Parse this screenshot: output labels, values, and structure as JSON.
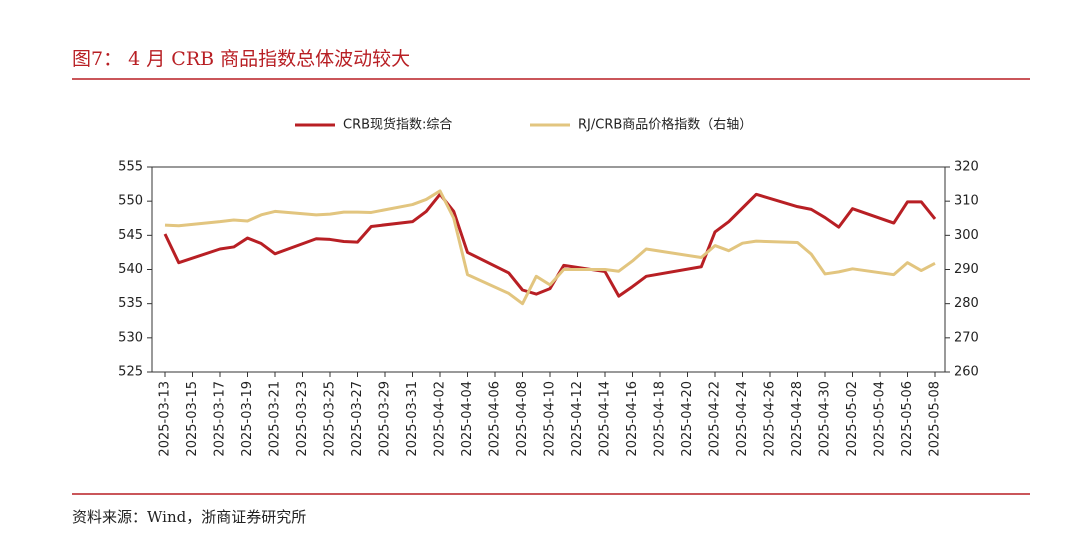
{
  "chart_data": {
    "type": "line",
    "title": "图7： 4 月 CRB 商品指数总体波动较大",
    "source": "资料来源：Wind，浙商证券研究所",
    "x": [
      "2025-03-13",
      "2025-03-14",
      "2025-03-17",
      "2025-03-18",
      "2025-03-19",
      "2025-03-20",
      "2025-03-21",
      "2025-03-24",
      "2025-03-25",
      "2025-03-26",
      "2025-03-27",
      "2025-03-28",
      "2025-03-31",
      "2025-04-01",
      "2025-04-02",
      "2025-04-03",
      "2025-04-04",
      "2025-04-07",
      "2025-04-08",
      "2025-04-09",
      "2025-04-10",
      "2025-04-11",
      "2025-04-14",
      "2025-04-15",
      "2025-04-16",
      "2025-04-17",
      "2025-04-21",
      "2025-04-22",
      "2025-04-23",
      "2025-04-24",
      "2025-04-25",
      "2025-04-28",
      "2025-04-29",
      "2025-04-30",
      "2025-05-01",
      "2025-05-02",
      "2025-05-05",
      "2025-05-06",
      "2025-05-07",
      "2025-05-08"
    ],
    "series": [
      {
        "name": "CRB现货指数:综合",
        "color": "#b81f24",
        "axis": "y",
        "values": [
          545.2,
          541,
          543,
          543.3,
          544.6,
          543.8,
          542.3,
          544.5,
          544.4,
          544.1,
          544,
          546.3,
          547,
          548.5,
          551,
          548.5,
          542.5,
          539.5,
          537,
          536.4,
          537.2,
          540.6,
          539.7,
          536.1,
          537.5,
          539,
          540.4,
          545.5,
          547,
          549,
          551,
          549.2,
          548.8,
          547.6,
          546.2,
          548.9,
          546.8,
          549.9,
          549.9,
          547.4
        ]
      },
      {
        "name": "RJ/CRB商品价格指数（右轴）",
        "color": "#e2c57f",
        "axis": "y2",
        "values": [
          303,
          302.8,
          304,
          304.5,
          304.2,
          306,
          307,
          306,
          306.2,
          306.8,
          306.8,
          306.7,
          309,
          310.5,
          313,
          305,
          288.5,
          283,
          280,
          288,
          285.5,
          290,
          290,
          289.5,
          292.5,
          296,
          293.5,
          297,
          295.5,
          297.7,
          298.3,
          297.9,
          294.5,
          288.7,
          289.3,
          290.2,
          288.5,
          292,
          289.7,
          291.8
        ]
      }
    ],
    "xlim": [
      "2025-03-13",
      "2025-05-08"
    ],
    "xticks": [
      "2025-03-13",
      "2025-03-15",
      "2025-03-17",
      "2025-03-19",
      "2025-03-21",
      "2025-03-23",
      "2025-03-25",
      "2025-03-27",
      "2025-03-29",
      "2025-03-31",
      "2025-04-02",
      "2025-04-04",
      "2025-04-06",
      "2025-04-08",
      "2025-04-10",
      "2025-04-12",
      "2025-04-14",
      "2025-04-16",
      "2025-04-18",
      "2025-04-20",
      "2025-04-22",
      "2025-04-24",
      "2025-04-26",
      "2025-04-28",
      "2025-04-30",
      "2025-05-02",
      "2025-05-04",
      "2025-05-06",
      "2025-05-08"
    ],
    "ylim": [
      525,
      555
    ],
    "yticks": [
      525,
      530,
      535,
      540,
      545,
      550,
      555
    ],
    "y2lim": [
      260,
      320
    ],
    "y2ticks": [
      260,
      270,
      280,
      290,
      300,
      310,
      320
    ],
    "legend": "top"
  }
}
